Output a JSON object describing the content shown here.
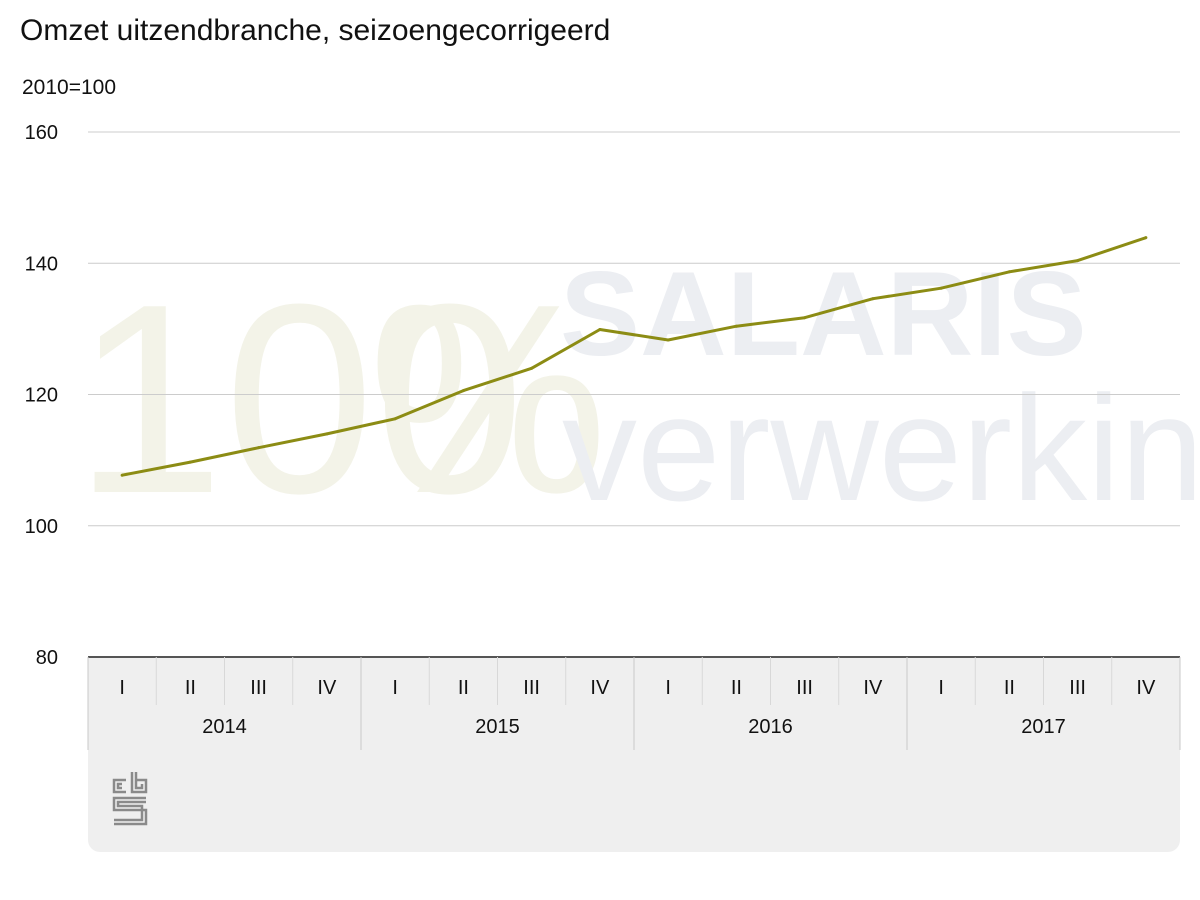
{
  "title": "Omzet uitzendbranche, seizoengecorrigeerd",
  "watermark": {
    "line1_number": "100",
    "line1_symbol": "%",
    "line1_word": "SALARIS",
    "line2_word": "verwerking",
    "colors": {
      "number": "#f3f3e8",
      "word": "#eceef2"
    }
  },
  "logo": {
    "name": "cbs-logo",
    "text": "cbs"
  },
  "colors": {
    "line": "#8c8c14",
    "grid": "#cccccc",
    "axis": "#555555",
    "panel": "#efefef",
    "text": "#111111"
  },
  "chart_data": {
    "type": "line",
    "title": "Omzet uitzendbranche, seizoengecorrigeerd",
    "unit_label": "2010=100",
    "ylim": [
      80,
      160
    ],
    "yticks": [
      "80",
      "100",
      "120",
      "140",
      "160"
    ],
    "grid": true,
    "legend": "none",
    "quarter_labels": [
      "I",
      "II",
      "III",
      "IV",
      "I",
      "II",
      "III",
      "IV",
      "I",
      "II",
      "III",
      "IV",
      "I",
      "II",
      "III",
      "IV"
    ],
    "year_labels": [
      "2014",
      "2015",
      "2016",
      "2017"
    ],
    "series": [
      {
        "values": [
          107.7,
          109.7,
          111.9,
          114.0,
          116.3,
          120.6,
          124.0,
          129.9,
          128.3,
          130.4,
          131.7,
          134.6,
          136.2,
          138.7,
          140.4,
          143.9
        ]
      }
    ]
  }
}
